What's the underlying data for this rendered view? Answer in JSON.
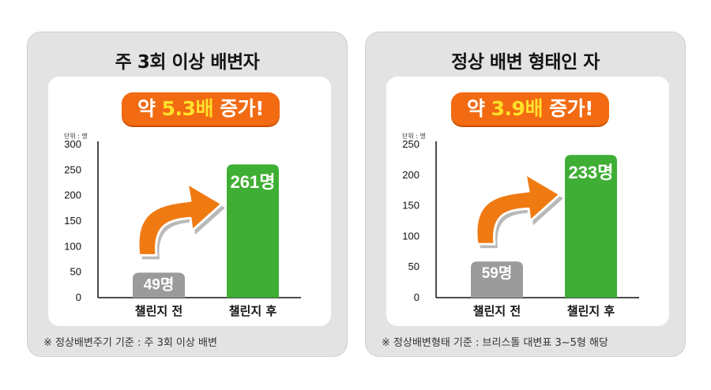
{
  "chart_data": [
    {
      "type": "bar",
      "title": "주 3회 이상 배변자",
      "subtitle_parts": [
        "약 ",
        "5.3배",
        " 증가!"
      ],
      "unit_label": "단위 : 명",
      "categories": [
        "챌린지 전",
        "챌린지 후"
      ],
      "values": [
        49,
        261
      ],
      "value_labels": [
        "49명",
        "261명"
      ],
      "ylim": [
        0,
        300
      ],
      "yticks": [
        0,
        50,
        100,
        150,
        200,
        250,
        300
      ],
      "bar_colors": [
        "#9b9b9b",
        "#3fae34"
      ],
      "note": "※ 정상배변주기 기준 : 주 3회 이상 배변"
    },
    {
      "type": "bar",
      "title": "정상 배변 형태인 자",
      "subtitle_parts": [
        "약 ",
        "3.9배",
        " 증가!"
      ],
      "unit_label": "단위 : 명",
      "categories": [
        "챌린지 전",
        "챌린지 후"
      ],
      "values": [
        59,
        233
      ],
      "value_labels": [
        "59명",
        "233명"
      ],
      "ylim": [
        0,
        250
      ],
      "yticks": [
        0,
        50,
        100,
        150,
        200,
        250
      ],
      "bar_colors": [
        "#9b9b9b",
        "#3fae34"
      ],
      "note": "※ 정상배변형태 기준 : 브리스톨 대변표 3~5형 해당"
    }
  ],
  "colors": {
    "accent": "#f26a12",
    "highlight": "#ffe12a",
    "arrow": "#f07a12",
    "card": "#e3e3e3"
  }
}
